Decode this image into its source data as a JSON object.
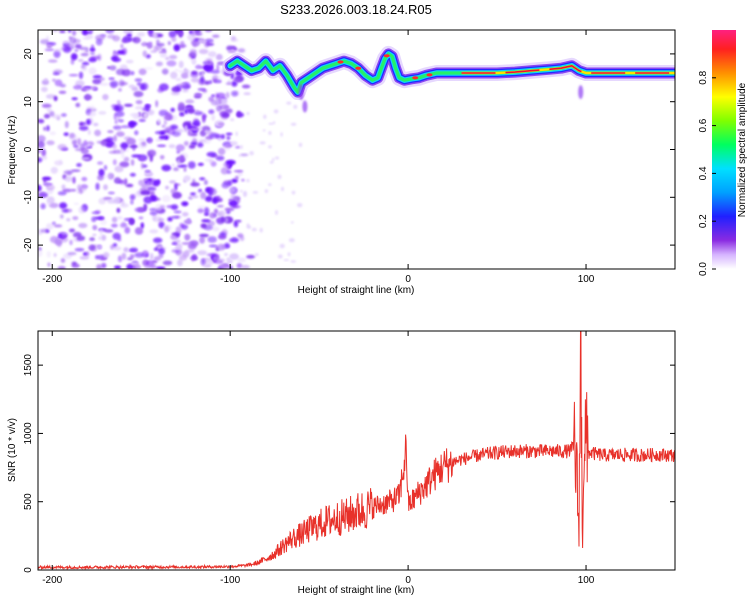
{
  "title": "S233.2026.003.18.24.R05",
  "chart_data": [
    {
      "type": "heatmap",
      "xlabel": "Height of straight line (km)",
      "ylabel": "Frequency (Hz)",
      "xlim": [
        -208,
        150
      ],
      "ylim": [
        -25,
        25
      ],
      "xticks": [
        -200,
        -100,
        0,
        100
      ],
      "yticks": [
        -20,
        -10,
        0,
        10,
        20
      ],
      "noise_region": {
        "x_from": -208,
        "x_to": -95,
        "description": "broadband scattered noise"
      },
      "ridge": [
        [
          -100,
          17.5
        ],
        [
          -96,
          18.5
        ],
        [
          -92,
          17.5
        ],
        [
          -88,
          16.5
        ],
        [
          -84,
          17
        ],
        [
          -80,
          18.5
        ],
        [
          -76,
          16.5
        ],
        [
          -72,
          17.5
        ],
        [
          -68,
          15.5
        ],
        [
          -64,
          13
        ],
        [
          -62,
          12
        ],
        [
          -60,
          14
        ],
        [
          -56,
          15
        ],
        [
          -52,
          16
        ],
        [
          -48,
          17
        ],
        [
          -44,
          17.5
        ],
        [
          -40,
          18
        ],
        [
          -36,
          18.5
        ],
        [
          -32,
          18
        ],
        [
          -28,
          17
        ],
        [
          -24,
          15.5
        ],
        [
          -20,
          14.5
        ],
        [
          -17,
          15
        ],
        [
          -15,
          17
        ],
        [
          -13,
          19
        ],
        [
          -11,
          20
        ],
        [
          -9,
          19.5
        ],
        [
          -7,
          17
        ],
        [
          -5,
          15
        ],
        [
          -2,
          14.5
        ],
        [
          2,
          14.8
        ],
        [
          6,
          15
        ],
        [
          10,
          15.5
        ],
        [
          16,
          16
        ],
        [
          22,
          16
        ],
        [
          30,
          16
        ],
        [
          40,
          16
        ],
        [
          50,
          16
        ],
        [
          60,
          16.2
        ],
        [
          70,
          16.5
        ],
        [
          80,
          16.8
        ],
        [
          86,
          17
        ],
        [
          92,
          17.5
        ],
        [
          96,
          16.5
        ],
        [
          100,
          16
        ],
        [
          110,
          16
        ],
        [
          120,
          16
        ],
        [
          130,
          16
        ],
        [
          140,
          16
        ],
        [
          150,
          16
        ]
      ],
      "colorbar": {
        "label": "Normalized spectral amplitude",
        "range": [
          0,
          1
        ],
        "ticks": [
          "0.0",
          "0.2",
          "0.4",
          "0.6",
          "0.8"
        ]
      }
    },
    {
      "type": "line",
      "xlabel": "Height of straight line (km)",
      "ylabel": "SNR (10 * v/v)",
      "xlim": [
        -208,
        150
      ],
      "ylim": [
        0,
        1750
      ],
      "xticks": [
        -200,
        -100,
        0,
        100
      ],
      "yticks": [
        0,
        500,
        1000,
        1500
      ],
      "color": "#e8312a",
      "series": [
        {
          "name": "SNR",
          "x": [
            -208,
            -180,
            -150,
            -120,
            -100,
            -90,
            -85,
            -80,
            -75,
            -70,
            -65,
            -60,
            -55,
            -50,
            -45,
            -40,
            -35,
            -30,
            -25,
            -20,
            -15,
            -10,
            -5,
            -3,
            -1,
            0,
            2,
            5,
            10,
            15,
            20,
            25,
            30,
            40,
            50,
            60,
            70,
            80,
            90,
            94,
            96,
            97,
            98,
            99,
            100,
            102,
            105,
            110,
            120,
            130,
            140,
            150
          ],
          "y": [
            20,
            20,
            22,
            22,
            25,
            35,
            50,
            80,
            120,
            180,
            230,
            260,
            300,
            330,
            360,
            380,
            390,
            420,
            440,
            460,
            480,
            500,
            540,
            700,
            900,
            480,
            500,
            550,
            620,
            700,
            760,
            790,
            810,
            840,
            860,
            870,
            870,
            870,
            870,
            900,
            300,
            1700,
            200,
            1100,
            850,
            860,
            850,
            840,
            845,
            840,
            845,
            840
          ]
        }
      ]
    }
  ]
}
